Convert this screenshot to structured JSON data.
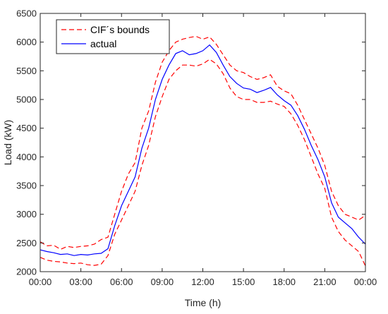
{
  "chart_data": {
    "type": "line",
    "title": "",
    "xlabel": "Time (h)",
    "ylabel": "Load (kW)",
    "xlim": [
      0,
      24
    ],
    "ylim": [
      2000,
      6500
    ],
    "x_ticks": [
      0,
      3,
      6,
      9,
      12,
      15,
      18,
      21,
      24
    ],
    "x_tick_labels": [
      "00:00",
      "03:00",
      "06:00",
      "09:00",
      "12:00",
      "15:00",
      "18:00",
      "21:00",
      "00:00"
    ],
    "y_ticks": [
      2000,
      2500,
      3000,
      3500,
      4000,
      4500,
      5000,
      5500,
      6000,
      6500
    ],
    "y_tick_labels": [
      "2000",
      "2500",
      "3000",
      "3500",
      "4000",
      "4500",
      "5000",
      "5500",
      "6000",
      "6500"
    ],
    "grid": false,
    "legend_position": "top-left",
    "x": [
      0,
      0.5,
      1,
      1.5,
      2,
      2.5,
      3,
      3.5,
      4,
      4.5,
      5,
      5.5,
      6,
      6.5,
      7,
      7.5,
      8,
      8.5,
      9,
      9.5,
      10,
      10.5,
      11,
      11.5,
      12,
      12.5,
      13,
      13.5,
      14,
      14.5,
      15,
      15.5,
      16,
      16.5,
      17,
      17.5,
      18,
      18.5,
      19,
      19.5,
      20,
      20.5,
      21,
      21.5,
      22,
      22.5,
      23,
      23.5,
      24
    ],
    "series": [
      {
        "name": "CIF´s bounds",
        "style": "dashed",
        "color": "#ff0000",
        "values": [
          2520,
          2450,
          2460,
          2390,
          2440,
          2420,
          2440,
          2450,
          2480,
          2560,
          2600,
          3000,
          3400,
          3700,
          3900,
          4500,
          4800,
          5300,
          5650,
          5850,
          6000,
          6050,
          6080,
          6100,
          6050,
          6090,
          5960,
          5780,
          5600,
          5500,
          5470,
          5400,
          5350,
          5380,
          5430,
          5230,
          5150,
          5100,
          4900,
          4650,
          4400,
          4150,
          3850,
          3400,
          3150,
          3000,
          2950,
          2900,
          2980
        ]
      },
      {
        "name": "",
        "style": "dashed",
        "color": "#ff0000",
        "values": [
          2250,
          2200,
          2180,
          2170,
          2150,
          2140,
          2150,
          2120,
          2110,
          2130,
          2280,
          2650,
          2900,
          3150,
          3400,
          3850,
          4200,
          4700,
          5050,
          5350,
          5500,
          5600,
          5600,
          5580,
          5620,
          5700,
          5620,
          5450,
          5200,
          5050,
          5000,
          5000,
          4950,
          4950,
          4970,
          4920,
          4880,
          4750,
          4550,
          4300,
          4000,
          3700,
          3450,
          2950,
          2700,
          2550,
          2450,
          2350,
          2100
        ]
      },
      {
        "name": "actual",
        "style": "solid",
        "color": "#0000ff",
        "values": [
          2380,
          2350,
          2330,
          2300,
          2310,
          2280,
          2300,
          2290,
          2310,
          2320,
          2400,
          2800,
          3150,
          3400,
          3650,
          4150,
          4500,
          5000,
          5350,
          5600,
          5800,
          5850,
          5780,
          5800,
          5850,
          5950,
          5820,
          5600,
          5400,
          5280,
          5200,
          5180,
          5120,
          5160,
          5210,
          5080,
          4980,
          4900,
          4720,
          4480,
          4200,
          3950,
          3650,
          3200,
          2950,
          2850,
          2750,
          2600,
          2480
        ]
      }
    ]
  }
}
